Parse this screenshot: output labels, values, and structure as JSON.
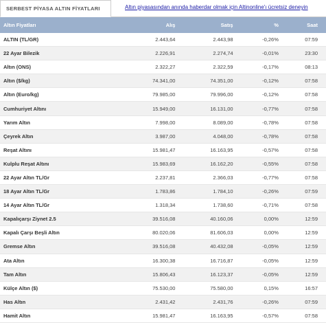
{
  "header": {
    "tab": "SERBEST PİYASA ALTIN FİYATLARI",
    "link": "Altın piyasasından anında haberdar olmak için Altinonline'ı ücretsiz deneyin"
  },
  "table": {
    "columns": [
      "Altın Fiyatları",
      "Alış",
      "Satış",
      "%",
      "Saat"
    ],
    "rows": [
      [
        "ALTIN (TL/GR)",
        "2.443,64",
        "2.443,98",
        "-0,26%",
        "07:59"
      ],
      [
        "22 Ayar Bilezik",
        "2.226,91",
        "2.274,74",
        "-0,01%",
        "23:30"
      ],
      [
        "Altın (ONS)",
        "2.322,27",
        "2.322,59",
        "-0,17%",
        "08:13"
      ],
      [
        "Altın ($/kg)",
        "74.341,00",
        "74.351,00",
        "-0,12%",
        "07:58"
      ],
      [
        "Altın (Euro/kg)",
        "79.985,00",
        "79.996,00",
        "-0,12%",
        "07:58"
      ],
      [
        "Cumhuriyet Altını",
        "15.949,00",
        "16.131,00",
        "-0,77%",
        "07:58"
      ],
      [
        "Yarım Altın",
        "7.998,00",
        "8.089,00",
        "-0,78%",
        "07:58"
      ],
      [
        "Çeyrek Altın",
        "3.987,00",
        "4.048,00",
        "-0,78%",
        "07:58"
      ],
      [
        "Reşat Altını",
        "15.981,47",
        "16.163,95",
        "-0,57%",
        "07:58"
      ],
      [
        "Kulplu Reşat Altını",
        "15.983,69",
        "16.162,20",
        "-0,55%",
        "07:58"
      ],
      [
        "22 Ayar Altın TL/Gr",
        "2.237,81",
        "2.366,03",
        "-0,77%",
        "07:58"
      ],
      [
        "18 Ayar Altın TL/Gr",
        "1.783,86",
        "1.784,10",
        "-0,26%",
        "07:59"
      ],
      [
        "14 Ayar Altın TL/Gr",
        "1.318,34",
        "1.738,60",
        "-0,71%",
        "07:58"
      ],
      [
        "Kapalıçarşı Ziynet 2.5",
        "39.516,08",
        "40.160,06",
        "0,00%",
        "12:59"
      ],
      [
        "Kapalı Çarşı Beşli Altın",
        "80.020,06",
        "81.606,03",
        "0,00%",
        "12:59"
      ],
      [
        "Gremse Altın",
        "39.516,08",
        "40.432,08",
        "-0,05%",
        "12:59"
      ],
      [
        "Ata Altın",
        "16.300,38",
        "16.716,87",
        "-0,05%",
        "12:59"
      ],
      [
        "Tam Altın",
        "15.806,43",
        "16.123,37",
        "-0,05%",
        "12:59"
      ],
      [
        "Külçe Altın ($)",
        "75.530,00",
        "75.580,00",
        "0,15%",
        "16:57"
      ],
      [
        "Has Altın",
        "2.431,42",
        "2.431,76",
        "-0,26%",
        "07:59"
      ],
      [
        "Hamit Altın",
        "15.981,47",
        "16.163,95",
        "-0,57%",
        "07:58"
      ]
    ]
  }
}
